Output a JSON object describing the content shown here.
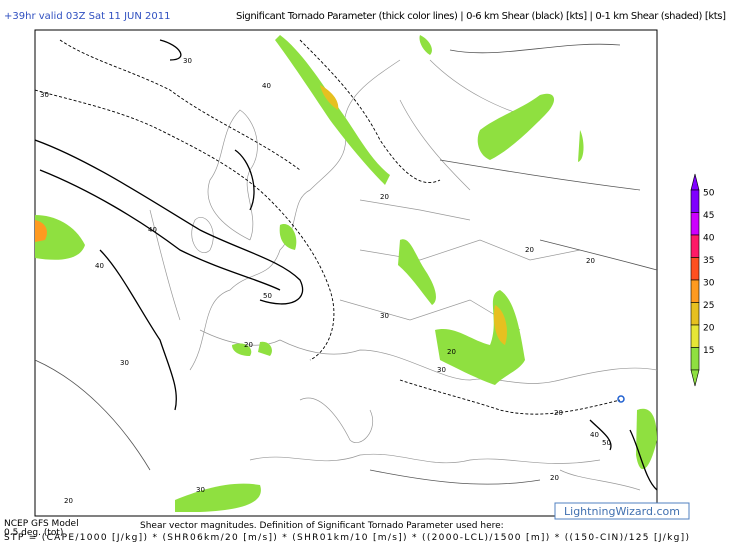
{
  "header": {
    "valid": "+39hr valid 03Z Sat 11 JUN 2011",
    "title": "Significant Tornado Parameter (thick color lines) | 0-6 km Shear (black) [kts] | 0-1 km Shear (shaded) [kts]"
  },
  "legend": {
    "items": [
      {
        "value": 50,
        "color": "#7f00ff"
      },
      {
        "value": 45,
        "color": "#cc00ff"
      },
      {
        "value": 40,
        "color": "#ff1a66"
      },
      {
        "value": 35,
        "color": "#ff5020"
      },
      {
        "value": 30,
        "color": "#ff9a20"
      },
      {
        "value": 25,
        "color": "#e6c020"
      },
      {
        "value": 20,
        "color": "#e6e636"
      },
      {
        "value": 15,
        "color": "#8fe040"
      }
    ]
  },
  "contour_labels": [
    "30",
    "40",
    "30",
    "40",
    "50",
    "40",
    "30",
    "20",
    "20",
    "30",
    "20",
    "20",
    "40",
    "50",
    "20",
    "30",
    "20",
    "20",
    "30",
    "20"
  ],
  "footer": {
    "model": "NCEP GFS Model",
    "resolution": "0.5 deg. (tot)",
    "note": "Shear vector magnitudes. Definition of Significant Tornado Parameter used here:",
    "formula": "STP = (CAPE/1000 [J/kg]) * (SHR06km/20 [m/s]) * (SHR01km/10 [m/s]) * ((2000-LCL)/1500 [m]) * ((150-CIN)/125 [J/kg])",
    "site": "LightningWizard.com"
  }
}
